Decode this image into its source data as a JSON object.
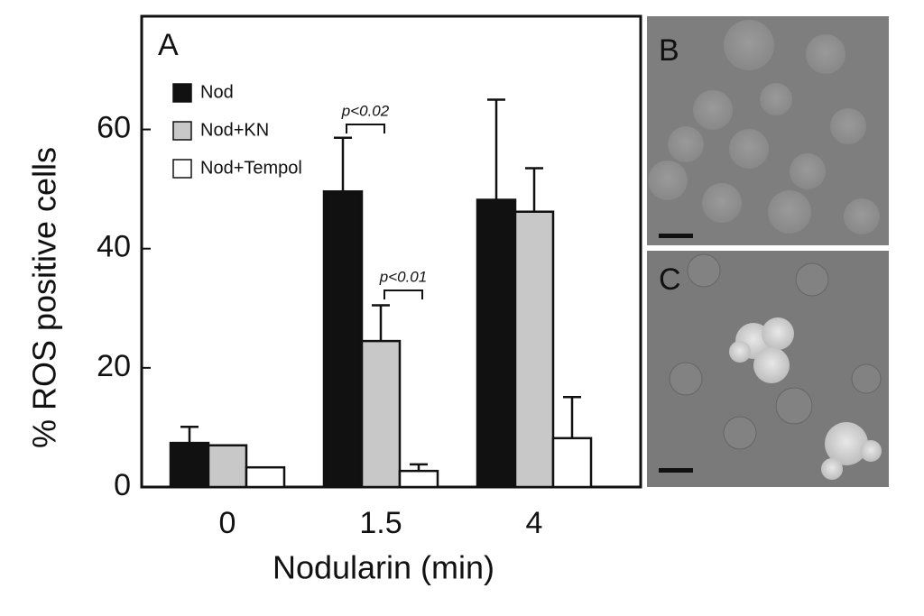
{
  "chart_data": {
    "type": "bar",
    "panel_label": "A",
    "x_label": "Nodularin (min)",
    "y_label": "% ROS positive cells",
    "categories": [
      "0",
      "1.5",
      "4"
    ],
    "series": [
      {
        "name": "Nod",
        "color": "#111111",
        "values": [
          7.4,
          49.6,
          48.2
        ],
        "errors": [
          2.7,
          9.0,
          16.8
        ]
      },
      {
        "name": "Nod+KN",
        "color": "#c8c8c8",
        "values": [
          7.0,
          24.5,
          46.2
        ],
        "errors": [
          null,
          6.0,
          7.3
        ]
      },
      {
        "name": "Nod+Tempol",
        "color": "#ffffff",
        "values": [
          3.3,
          2.7,
          8.2
        ],
        "errors": [
          null,
          1.1,
          6.9
        ]
      }
    ],
    "annotations": [
      {
        "text": "p<0.02"
      },
      {
        "text": "p<0.01"
      }
    ],
    "ylim": [
      0,
      79
    ],
    "yticks": [
      0,
      20,
      40,
      60
    ]
  },
  "images": [
    {
      "label": "B"
    },
    {
      "label": "C"
    }
  ]
}
